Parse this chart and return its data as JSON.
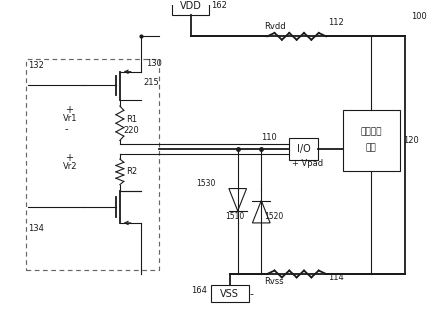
{
  "bg": "#ffffff",
  "lc": "#1a1a1a",
  "figsize": [
    4.44,
    3.11
  ],
  "dpi": 100,
  "VDD": "VDD",
  "VSS": "VSS",
  "IO": "I/O",
  "Vpad": "+ Vpad",
  "Rvdd": "Rvdd",
  "Rvss": "Rvss",
  "box_line1": "（多个）",
  "box_line2": "相位",
  "n100": "100",
  "n112": "112",
  "n114": "114",
  "n120": "120",
  "n130": "130",
  "n132": "132",
  "n134": "134",
  "n162": "162",
  "n164": "164",
  "n215": "215",
  "n220": "220",
  "n1510": "1510",
  "n1520": "1520",
  "n1530": "1530",
  "R1": "R1",
  "R2": "R2",
  "Vr1": "Vr1",
  "Vr2": "Vr2",
  "n110": "110"
}
